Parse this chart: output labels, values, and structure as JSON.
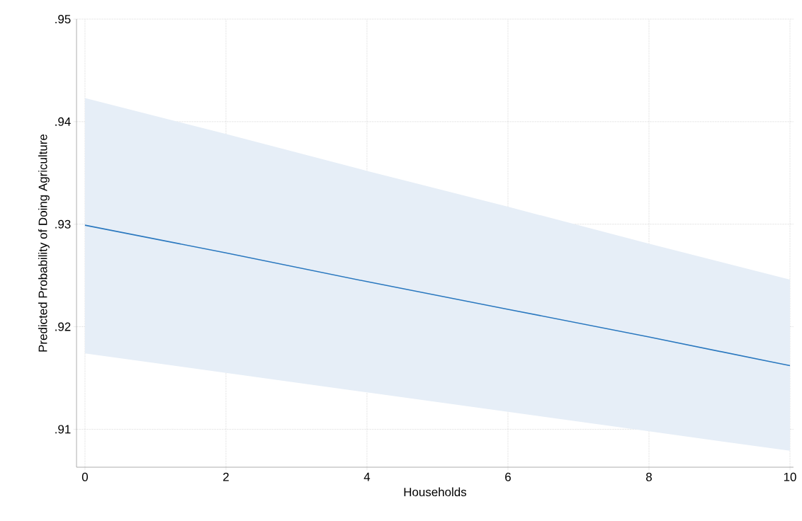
{
  "chart_data": {
    "type": "line",
    "xlabel": "Households",
    "ylabel": "Predicted Probability of Doing Agriculture",
    "x": [
      0,
      2,
      4,
      6,
      8,
      10
    ],
    "series": [
      {
        "color": "#2a78bf",
        "values": [
          0.9299,
          0.9272,
          0.9244,
          0.9217,
          0.919,
          0.9162
        ],
        "lower": [
          0.9174,
          0.9155,
          0.9136,
          0.9117,
          0.9098,
          0.9079
        ],
        "upper": [
          0.9423,
          0.9388,
          0.9352,
          0.9317,
          0.9281,
          0.9246
        ]
      }
    ],
    "xlim": [
      -0.12,
      10.05
    ],
    "ylim": [
      0.9063,
      0.95
    ],
    "xticks": [
      0,
      2,
      4,
      6,
      8,
      10
    ],
    "yticks": [
      {
        "value": 0.91,
        "label": ".91"
      },
      {
        "value": 0.92,
        "label": ".92"
      },
      {
        "value": 0.93,
        "label": ".93"
      },
      {
        "value": 0.94,
        "label": ".94"
      },
      {
        "value": 0.95,
        "label": ".95"
      }
    ],
    "grid": true,
    "marker": "none",
    "line_style": "solid"
  }
}
